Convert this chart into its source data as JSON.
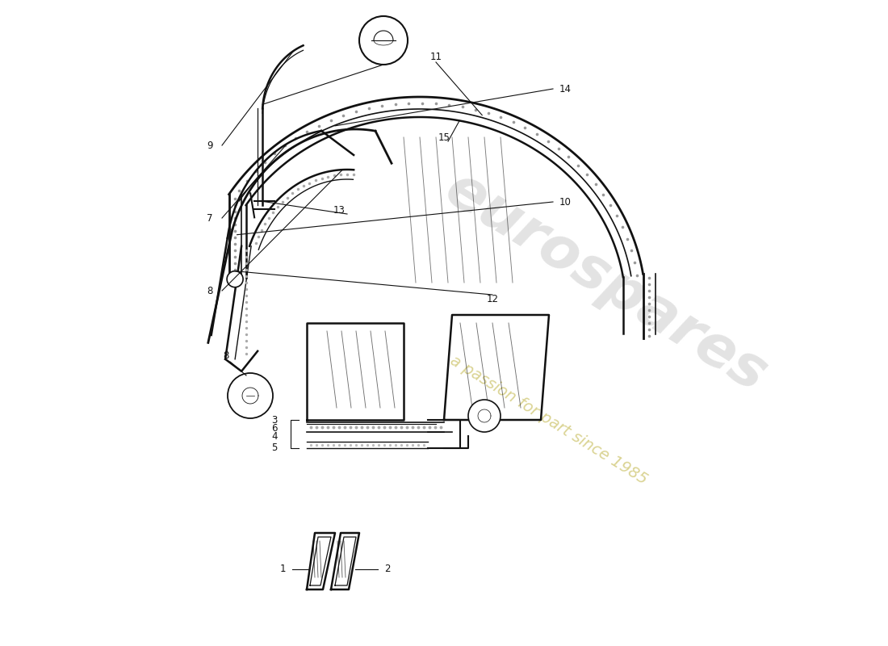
{
  "background_color": "#ffffff",
  "line_color": "#111111",
  "seal_color": "#999999",
  "watermark1_color": "#cccccc",
  "watermark2_color": "#d4cc80",
  "figsize": [
    11.0,
    8.0
  ],
  "dpi": 100
}
